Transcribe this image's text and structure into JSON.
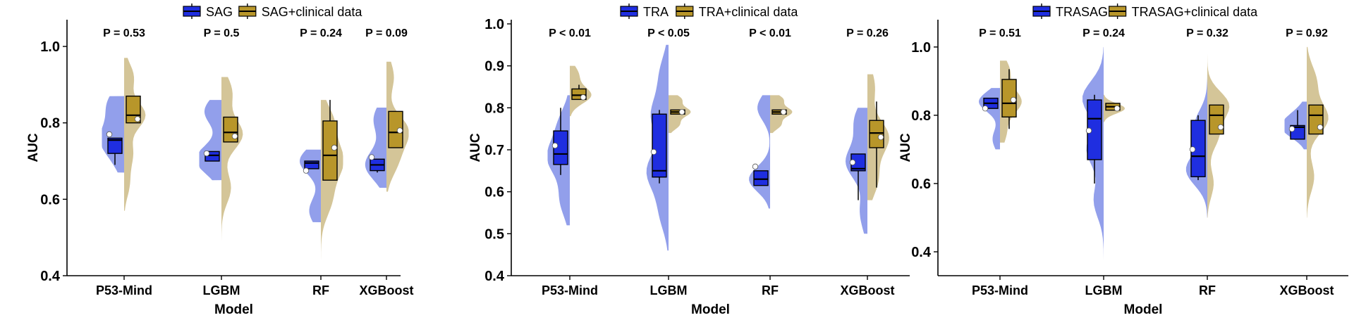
{
  "colors": {
    "base": "#1f2ee0",
    "base_violin": "#7f8ee8",
    "clinical": "#b8962a",
    "clinical_violin": "#cdbb86",
    "axis": "#000000"
  },
  "chart_data": [
    {
      "type": "violin-box",
      "xlabel": "Model",
      "ylabel": "AUC",
      "categories": [
        "P53-Mind",
        "LGBM",
        "RF",
        "XGBoost"
      ],
      "ylim": [
        0.4,
        1.07
      ],
      "yticks": [
        "0.4",
        "0.6",
        "0.8",
        "1.0"
      ],
      "pvalues": [
        "P = 0.53",
        "P = 0.5",
        "P = 0.24",
        "P = 0.09"
      ],
      "legend": [
        "SAG",
        "SAG+clinical data"
      ],
      "series": [
        {
          "name": "SAG",
          "boxes": [
            {
              "min": 0.69,
              "q1": 0.72,
              "median": 0.755,
              "q3": 0.76,
              "max": 0.76,
              "mean": 0.77
            },
            {
              "min": 0.7,
              "q1": 0.7,
              "median": 0.715,
              "q3": 0.725,
              "max": 0.725,
              "mean": 0.72
            },
            {
              "min": 0.68,
              "q1": 0.68,
              "median": 0.695,
              "q3": 0.7,
              "max": 0.7,
              "mean": 0.675
            },
            {
              "min": 0.67,
              "q1": 0.675,
              "median": 0.69,
              "q3": 0.705,
              "max": 0.705,
              "mean": 0.71
            }
          ],
          "violins": [
            {
              "peaks": [
                [
                  0.85,
                  0.75
                ],
                [
                  0.76,
                  1.0
                ],
                [
                  0.7,
                  0.3
                ]
              ],
              "spread": 0.04,
              "range": [
                0.67,
                0.87
              ]
            },
            {
              "peaks": [
                [
                  0.83,
                  0.8
                ],
                [
                  0.71,
                  1.0
                ],
                [
                  0.68,
                  0.3
                ]
              ],
              "spread": 0.035,
              "range": [
                0.65,
                0.86
              ]
            },
            {
              "peaks": [
                [
                  0.7,
                  1.0
                ],
                [
                  0.57,
                  0.55
                ]
              ],
              "spread": 0.035,
              "range": [
                0.54,
                0.73
              ]
            },
            {
              "peaks": [
                [
                  0.81,
                  0.6
                ],
                [
                  0.69,
                  1.0
                ]
              ],
              "spread": 0.04,
              "range": [
                0.63,
                0.84
              ]
            }
          ]
        },
        {
          "name": "SAG+clinical data",
          "boxes": [
            {
              "min": 0.8,
              "q1": 0.8,
              "median": 0.82,
              "q3": 0.87,
              "max": 0.87,
              "mean": 0.81
            },
            {
              "min": 0.75,
              "q1": 0.75,
              "median": 0.775,
              "q3": 0.815,
              "max": 0.815,
              "mean": 0.765
            },
            {
              "min": 0.65,
              "q1": 0.65,
              "median": 0.715,
              "q3": 0.805,
              "max": 0.86,
              "mean": 0.735
            },
            {
              "min": 0.735,
              "q1": 0.735,
              "median": 0.775,
              "q3": 0.83,
              "max": 0.83,
              "mean": 0.78
            }
          ],
          "violins": [
            {
              "peaks": [
                [
                  0.92,
                  0.45
                ],
                [
                  0.82,
                  1.0
                ],
                [
                  0.72,
                  0.4
                ],
                [
                  0.64,
                  0.25
                ]
              ],
              "spread": 0.035,
              "range": [
                0.57,
                0.97
              ]
            },
            {
              "peaks": [
                [
                  0.88,
                  0.5
                ],
                [
                  0.77,
                  1.0
                ],
                [
                  0.63,
                  0.45
                ]
              ],
              "spread": 0.04,
              "range": [
                0.49,
                0.92
              ]
            },
            {
              "peaks": [
                [
                  0.8,
                  0.6
                ],
                [
                  0.7,
                  1.0
                ],
                [
                  0.6,
                  0.5
                ]
              ],
              "spread": 0.045,
              "range": [
                0.44,
                0.86
              ]
            },
            {
              "peaks": [
                [
                  0.92,
                  0.35
                ],
                [
                  0.78,
                  1.0
                ],
                [
                  0.7,
                  0.5
                ]
              ],
              "spread": 0.04,
              "range": [
                0.62,
                0.96
              ]
            }
          ]
        }
      ]
    },
    {
      "type": "violin-box",
      "xlabel": "Model",
      "ylabel": "AUC",
      "categories": [
        "P53-Mind",
        "LGBM",
        "RF",
        "XGBoost"
      ],
      "ylim": [
        0.4,
        1.01
      ],
      "yticks": [
        "0.4",
        "0.5",
        "0.6",
        "0.7",
        "0.8",
        "0.9",
        "1.0"
      ],
      "pvalues": [
        "P < 0.01",
        "P < 0.05",
        "P < 0.01",
        "P = 0.26"
      ],
      "legend": [
        "TRA",
        "TRA+clinical data"
      ],
      "series": [
        {
          "name": "TRA",
          "boxes": [
            {
              "min": 0.64,
              "q1": 0.665,
              "median": 0.69,
              "q3": 0.745,
              "max": 0.8,
              "mean": 0.71
            },
            {
              "min": 0.62,
              "q1": 0.635,
              "median": 0.65,
              "q3": 0.785,
              "max": 0.795,
              "mean": 0.695
            },
            {
              "min": 0.615,
              "q1": 0.615,
              "median": 0.63,
              "q3": 0.65,
              "max": 0.65,
              "mean": 0.66
            },
            {
              "min": 0.58,
              "q1": 0.65,
              "median": 0.655,
              "q3": 0.69,
              "max": 0.69,
              "mean": 0.67
            }
          ],
          "violins": [
            {
              "peaks": [
                [
                  0.76,
                  0.5
                ],
                [
                  0.68,
                  1.0
                ],
                [
                  0.58,
                  0.45
                ]
              ],
              "spread": 0.04,
              "range": [
                0.52,
                0.83
              ]
            },
            {
              "peaks": [
                [
                  0.88,
                  0.4
                ],
                [
                  0.78,
                  0.8
                ],
                [
                  0.65,
                  1.0
                ],
                [
                  0.55,
                  0.4
                ]
              ],
              "spread": 0.045,
              "range": [
                0.46,
                0.95
              ]
            },
            {
              "peaks": [
                [
                  0.8,
                  0.6
                ],
                [
                  0.63,
                  1.0
                ]
              ],
              "spread": 0.03,
              "range": [
                0.56,
                0.83
              ]
            },
            {
              "peaks": [
                [
                  0.77,
                  0.6
                ],
                [
                  0.67,
                  1.0
                ],
                [
                  0.55,
                  0.35
                ]
              ],
              "spread": 0.04,
              "range": [
                0.5,
                0.8
              ]
            }
          ]
        },
        {
          "name": "TRA+clinical data",
          "boxes": [
            {
              "min": 0.82,
              "q1": 0.82,
              "median": 0.83,
              "q3": 0.845,
              "max": 0.855,
              "mean": 0.825
            },
            {
              "min": 0.785,
              "q1": 0.785,
              "median": 0.79,
              "q3": 0.795,
              "max": 0.795,
              "mean": 0.79
            },
            {
              "min": 0.785,
              "q1": 0.785,
              "median": 0.79,
              "q3": 0.795,
              "max": 0.795,
              "mean": 0.79
            },
            {
              "min": 0.61,
              "q1": 0.705,
              "median": 0.74,
              "q3": 0.77,
              "max": 0.815,
              "mean": 0.73
            }
          ],
          "violins": [
            {
              "peaks": [
                [
                  0.88,
                  0.4
                ],
                [
                  0.83,
                  1.0
                ]
              ],
              "spread": 0.02,
              "range": [
                0.78,
                0.9
              ]
            },
            {
              "peaks": [
                [
                  0.82,
                  0.6
                ],
                [
                  0.79,
                  1.0
                ],
                [
                  0.76,
                  0.5
                ]
              ],
              "spread": 0.012,
              "range": [
                0.74,
                0.83
              ]
            },
            {
              "peaks": [
                [
                  0.82,
                  0.6
                ],
                [
                  0.79,
                  1.0
                ],
                [
                  0.76,
                  0.5
                ]
              ],
              "spread": 0.012,
              "range": [
                0.74,
                0.83
              ]
            },
            {
              "peaks": [
                [
                  0.85,
                  0.35
                ],
                [
                  0.73,
                  1.0
                ],
                [
                  0.63,
                  0.5
                ]
              ],
              "spread": 0.04,
              "range": [
                0.58,
                0.88
              ]
            }
          ]
        }
      ]
    },
    {
      "type": "violin-box",
      "xlabel": "Model",
      "ylabel": "AUC",
      "categories": [
        "P53-Mind",
        "LGBM",
        "RF",
        "XGBoost"
      ],
      "ylim": [
        0.33,
        1.08
      ],
      "yticks": [
        "0.4",
        "0.6",
        "0.8",
        "1.0"
      ],
      "pvalues": [
        "P = 0.51",
        "P = 0.24",
        "P = 0.32",
        "P = 0.92"
      ],
      "legend": [
        "TRASAG",
        "TRASAG+clinical data"
      ],
      "series": [
        {
          "name": "TRASAG",
          "boxes": [
            {
              "min": 0.82,
              "q1": 0.82,
              "median": 0.835,
              "q3": 0.85,
              "max": 0.85,
              "mean": 0.82
            },
            {
              "min": 0.6,
              "q1": 0.67,
              "median": 0.79,
              "q3": 0.845,
              "max": 0.86,
              "mean": 0.755
            },
            {
              "min": 0.61,
              "q1": 0.62,
              "median": 0.68,
              "q3": 0.785,
              "max": 0.8,
              "mean": 0.7
            },
            {
              "min": 0.73,
              "q1": 0.73,
              "median": 0.765,
              "q3": 0.77,
              "max": 0.815,
              "mean": 0.76
            }
          ],
          "violins": [
            {
              "peaks": [
                [
                  0.84,
                  1.0
                ],
                [
                  0.73,
                  0.35
                ]
              ],
              "spread": 0.03,
              "range": [
                0.7,
                0.88
              ]
            },
            {
              "peaks": [
                [
                  0.85,
                  0.75
                ],
                [
                  0.7,
                  0.6
                ],
                [
                  0.55,
                  0.35
                ]
              ],
              "spread": 0.05,
              "range": [
                0.36,
                1.0
              ]
            },
            {
              "peaks": [
                [
                  0.77,
                  0.6
                ],
                [
                  0.64,
                  1.0
                ]
              ],
              "spread": 0.045,
              "range": [
                0.5,
                0.92
              ]
            },
            {
              "peaks": [
                [
                  0.8,
                  0.45
                ],
                [
                  0.76,
                  1.0
                ]
              ],
              "spread": 0.03,
              "range": [
                0.7,
                0.84
              ]
            }
          ]
        },
        {
          "name": "TRASAG+clinical data",
          "boxes": [
            {
              "min": 0.76,
              "q1": 0.795,
              "median": 0.835,
              "q3": 0.905,
              "max": 0.935,
              "mean": 0.845
            },
            {
              "min": 0.815,
              "q1": 0.815,
              "median": 0.825,
              "q3": 0.835,
              "max": 0.835,
              "mean": 0.82
            },
            {
              "min": 0.745,
              "q1": 0.745,
              "median": 0.8,
              "q3": 0.83,
              "max": 0.83,
              "mean": 0.765
            },
            {
              "min": 0.745,
              "q1": 0.745,
              "median": 0.8,
              "q3": 0.83,
              "max": 0.83,
              "mean": 0.765
            }
          ],
          "violins": [
            {
              "peaks": [
                [
                  0.93,
                  0.45
                ],
                [
                  0.84,
                  1.0
                ],
                [
                  0.75,
                  0.3
                ]
              ],
              "spread": 0.035,
              "range": [
                0.72,
                0.96
              ]
            },
            {
              "peaks": [
                [
                  0.82,
                  1.0
                ]
              ],
              "spread": 0.015,
              "range": [
                0.78,
                0.86
              ]
            },
            {
              "peaks": [
                [
                  0.83,
                  1.0
                ],
                [
                  0.74,
                  0.5
                ],
                [
                  0.6,
                  0.3
                ]
              ],
              "spread": 0.04,
              "range": [
                0.5,
                0.98
              ]
            },
            {
              "peaks": [
                [
                  0.9,
                  0.45
                ],
                [
                  0.79,
                  1.0
                ],
                [
                  0.62,
                  0.35
                ]
              ],
              "spread": 0.045,
              "range": [
                0.5,
                1.0
              ]
            }
          ]
        }
      ]
    }
  ]
}
